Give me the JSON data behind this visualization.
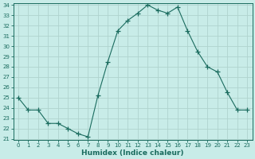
{
  "x": [
    0,
    1,
    2,
    3,
    4,
    5,
    6,
    7,
    8,
    9,
    10,
    11,
    12,
    13,
    14,
    15,
    16,
    17,
    18,
    19,
    20,
    21,
    22,
    23
  ],
  "y": [
    25.0,
    23.8,
    23.8,
    22.5,
    22.5,
    22.0,
    21.5,
    21.2,
    25.2,
    28.5,
    31.5,
    32.5,
    33.2,
    34.0,
    33.5,
    33.2,
    33.8,
    31.5,
    29.5,
    28.0,
    27.5,
    25.5,
    23.8,
    23.8
  ],
  "xlabel": "Humidex (Indice chaleur)",
  "bg_color": "#c8ece8",
  "line_color": "#1a6b5e",
  "grid_color": "#b0d4ce",
  "ylim_min": 21,
  "ylim_max": 34,
  "xlim_min": -0.5,
  "xlim_max": 23.5,
  "yticks": [
    21,
    22,
    23,
    24,
    25,
    26,
    27,
    28,
    29,
    30,
    31,
    32,
    33,
    34
  ],
  "xticks": [
    0,
    1,
    2,
    3,
    4,
    5,
    6,
    7,
    8,
    9,
    10,
    11,
    12,
    13,
    14,
    15,
    16,
    17,
    18,
    19,
    20,
    21,
    22,
    23
  ],
  "marker": "+",
  "linewidth": 0.8,
  "markersize": 4,
  "markeredgewidth": 0.9,
  "tick_fontsize": 5.0,
  "xlabel_fontsize": 6.5
}
